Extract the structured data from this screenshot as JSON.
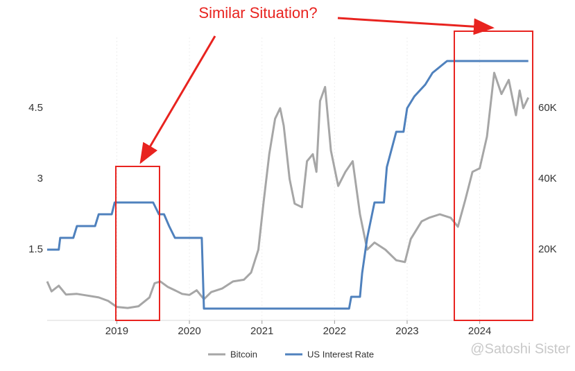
{
  "chart_data": {
    "type": "line",
    "title": "Similar Situation?",
    "watermark": "@Satoshi Sister",
    "xlim": [
      2018.04,
      2024.73
    ],
    "xticks": [
      2019,
      2020,
      2021,
      2022,
      2023,
      2024
    ],
    "ylim": [
      0,
      6
    ],
    "yticks": [
      1.5,
      3,
      4.5
    ],
    "y2lim": [
      0,
      80000
    ],
    "y2ticks": [
      {
        "value": 20000,
        "label": "20K"
      },
      {
        "value": 40000,
        "label": "40K"
      },
      {
        "value": 60000,
        "label": "60K"
      }
    ],
    "legend": "bottom",
    "series": [
      {
        "name": "Bitcoin",
        "color": "#a6a6a6",
        "axis": "y2",
        "x": [
          2018.04,
          2018.1,
          2018.2,
          2018.3,
          2018.45,
          2018.6,
          2018.75,
          2018.88,
          2019.0,
          2019.15,
          2019.3,
          2019.45,
          2019.52,
          2019.6,
          2019.7,
          2019.8,
          2019.9,
          2020.0,
          2020.1,
          2020.2,
          2020.3,
          2020.45,
          2020.6,
          2020.75,
          2020.85,
          2020.95,
          2021.02,
          2021.1,
          2021.18,
          2021.25,
          2021.3,
          2021.38,
          2021.45,
          2021.55,
          2021.62,
          2021.7,
          2021.75,
          2021.8,
          2021.87,
          2021.95,
          2022.05,
          2022.15,
          2022.25,
          2022.35,
          2022.45,
          2022.55,
          2022.7,
          2022.85,
          2022.97,
          2023.05,
          2023.2,
          2023.3,
          2023.45,
          2023.6,
          2023.7,
          2023.8,
          2023.9,
          2024.0,
          2024.1,
          2024.2,
          2024.3,
          2024.4,
          2024.5,
          2024.55,
          2024.6,
          2024.67
        ],
        "values": [
          11000,
          8200,
          9800,
          7300,
          7500,
          7000,
          6500,
          5500,
          3800,
          3500,
          4000,
          6500,
          10500,
          11000,
          9500,
          8500,
          7500,
          7200,
          8500,
          6000,
          8000,
          9000,
          11000,
          11500,
          13500,
          20000,
          33000,
          47000,
          57000,
          60000,
          55000,
          40000,
          33000,
          32000,
          45000,
          47000,
          42000,
          62000,
          66000,
          48000,
          38000,
          42000,
          45000,
          30000,
          20000,
          22000,
          20000,
          17000,
          16500,
          23000,
          28000,
          29000,
          30000,
          29000,
          26500,
          34000,
          42000,
          43000,
          52000,
          70000,
          64000,
          68000,
          58000,
          65000,
          60000,
          63000
        ]
      },
      {
        "name": "US Interest Rate",
        "color": "#4f81bd",
        "x": [
          2018.04,
          2018.2,
          2018.22,
          2018.4,
          2018.45,
          2018.7,
          2018.75,
          2018.93,
          2018.97,
          2019.5,
          2019.58,
          2019.65,
          2019.72,
          2019.8,
          2020.17,
          2020.2,
          2022.2,
          2022.23,
          2022.35,
          2022.38,
          2022.45,
          2022.55,
          2022.68,
          2022.72,
          2022.85,
          2022.95,
          2023.0,
          2023.1,
          2023.25,
          2023.35,
          2023.55,
          2024.67
        ],
        "values": [
          1.5,
          1.5,
          1.75,
          1.75,
          2.0,
          2.0,
          2.25,
          2.25,
          2.5,
          2.5,
          2.25,
          2.25,
          2.0,
          1.75,
          1.75,
          0.25,
          0.25,
          0.5,
          0.5,
          1.0,
          1.75,
          2.5,
          2.5,
          3.25,
          4.0,
          4.0,
          4.5,
          4.75,
          5.0,
          5.25,
          5.5,
          5.5
        ]
      }
    ]
  }
}
